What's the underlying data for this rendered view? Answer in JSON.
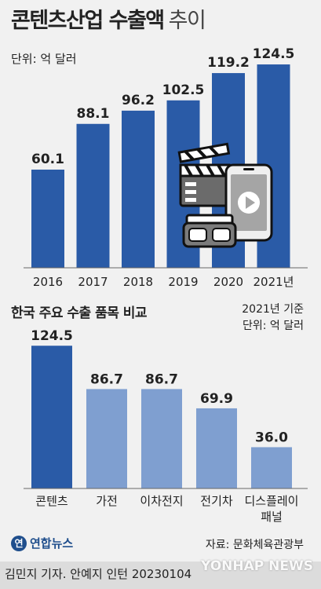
{
  "header": {
    "title_bold": "콘텐츠산업 수출액",
    "title_light": "추이",
    "unit": "단위: 억 달러"
  },
  "section2": {
    "title": "한국 주요 수출 품목 비교",
    "basis": "2021년 기준",
    "unit": "단위: 억 달러"
  },
  "footer": {
    "logo": "연합뉴스",
    "source": "자료: 문화체육관광부",
    "credit": "김민지 기자. 안예지 인턴  20230104",
    "watermark": "YONHAP NEWS"
  },
  "chart_data": [
    {
      "type": "bar",
      "title": "콘텐츠산업 수출액 추이",
      "unit": "억 달러",
      "categories": [
        "2016",
        "2017",
        "2018",
        "2019",
        "2020",
        "2021년"
      ],
      "values": [
        60.1,
        88.1,
        96.2,
        102.5,
        119.2,
        124.5
      ],
      "color": "#2a5ba7"
    },
    {
      "type": "bar",
      "title": "한국 주요 수출 품목 비교",
      "unit": "억 달러",
      "categories": [
        "콘텐츠",
        "가전",
        "이차전지",
        "전기차",
        "디스플레이\n패널"
      ],
      "values": [
        124.5,
        86.7,
        86.7,
        69.9,
        36.0
      ],
      "colors": [
        "#2a5ba7",
        "#7f9fd0",
        "#7f9fd0",
        "#7f9fd0",
        "#7f9fd0"
      ]
    }
  ]
}
